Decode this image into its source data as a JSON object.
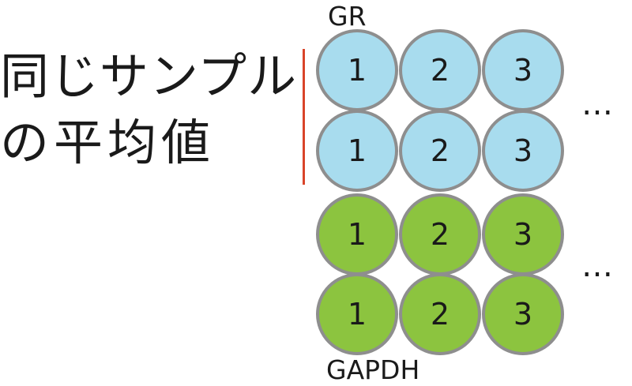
{
  "label": {
    "line1": "同じサンプル",
    "line2": "の平均値"
  },
  "groups": {
    "top_label": "GR",
    "bottom_label": "GAPDH"
  },
  "colors": {
    "gr_well": "#a8dcee",
    "gapdh_well": "#8cc43f",
    "well_border": "#8e8e8e",
    "divider": "#d9452a"
  },
  "rows": [
    {
      "group": "GR",
      "wells": [
        "1",
        "2",
        "3"
      ]
    },
    {
      "group": "GR",
      "wells": [
        "1",
        "2",
        "3"
      ]
    },
    {
      "group": "GAPDH",
      "wells": [
        "1",
        "2",
        "3"
      ]
    },
    {
      "group": "GAPDH",
      "wells": [
        "1",
        "2",
        "3"
      ]
    }
  ],
  "continuation": "…"
}
